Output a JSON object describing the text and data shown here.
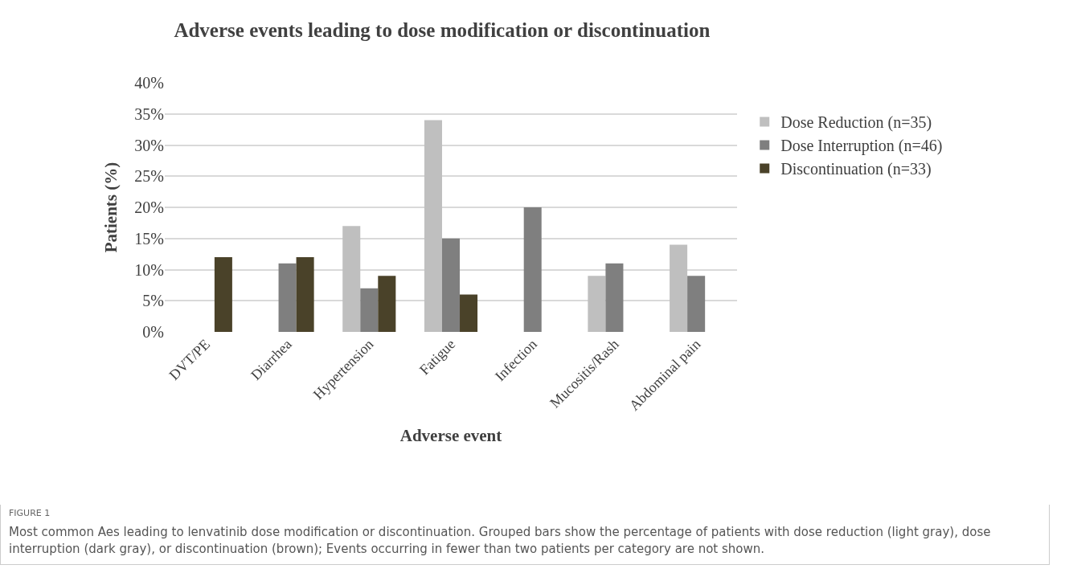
{
  "chart_data": {
    "type": "bar",
    "title": "Adverse events leading to dose modification or discontinuation",
    "xlabel": "Adverse event",
    "ylabel": "Patients (%)",
    "categories": [
      "DVT/PE",
      "Diarrhea",
      "Hypertension",
      "Fatigue",
      "Infection",
      "Mucositis/Rash",
      "Abdominal pain"
    ],
    "series": [
      {
        "name": "Dose Reduction (n=35)",
        "color": "#bfbfbf",
        "values": [
          0,
          0,
          17,
          34,
          0,
          9,
          14
        ]
      },
      {
        "name": "Dose Interruption (n=46)",
        "color": "#7f7f7f",
        "values": [
          0,
          11,
          7,
          15,
          20,
          11,
          9
        ]
      },
      {
        "name": "Discontinuation (n=33)",
        "color": "#4a4229",
        "values": [
          12,
          12,
          9,
          6,
          0,
          0,
          0
        ]
      }
    ],
    "ylim": [
      0,
      40
    ],
    "yticks": [
      {
        "value": 0,
        "label": "0%"
      },
      {
        "value": 5,
        "label": "5%"
      },
      {
        "value": 10,
        "label": "10%"
      },
      {
        "value": 15,
        "label": "15%"
      },
      {
        "value": 20,
        "label": "20%"
      },
      {
        "value": 25,
        "label": "25%"
      },
      {
        "value": 30,
        "label": "30%"
      },
      {
        "value": 35,
        "label": "35%"
      },
      {
        "value": 40,
        "label": "40%"
      }
    ],
    "grid": "y",
    "legend": "right",
    "annotations": [
      "FIGURE 1",
      "Most common Aes leading to lenvatinib dose modification or discontinuation. Grouped bars show the percentage of patients with dose reduction (light gray), dose interruption (dark gray), or discontinuation (brown); Events occurring in fewer than two patients per category are not shown."
    ]
  }
}
